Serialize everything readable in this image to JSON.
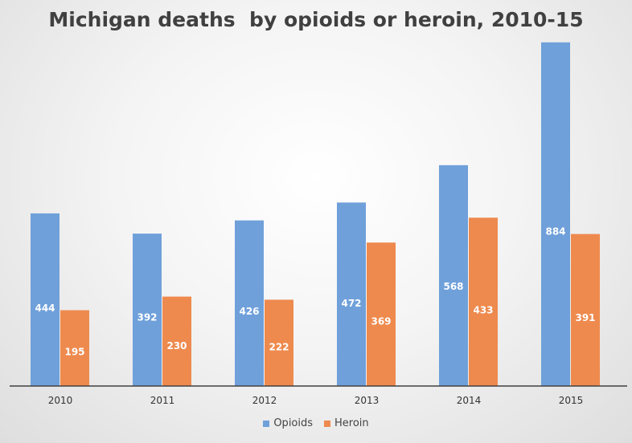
{
  "chart_data": {
    "type": "bar",
    "title": "Michigan deaths  by opioids or heroin, 2010-15",
    "categories": [
      "2010",
      "2011",
      "2012",
      "2013",
      "2014",
      "2015"
    ],
    "series": [
      {
        "name": "Opioids",
        "color": "#6fa0da",
        "values": [
          444,
          392,
          426,
          472,
          568,
          884
        ]
      },
      {
        "name": "Heroin",
        "color": "#ee8a4e",
        "values": [
          195,
          230,
          222,
          369,
          433,
          391
        ]
      }
    ],
    "xlabel": "",
    "ylabel": "",
    "ylim": [
      0,
      900
    ],
    "grid": false,
    "legend": "bottom"
  }
}
